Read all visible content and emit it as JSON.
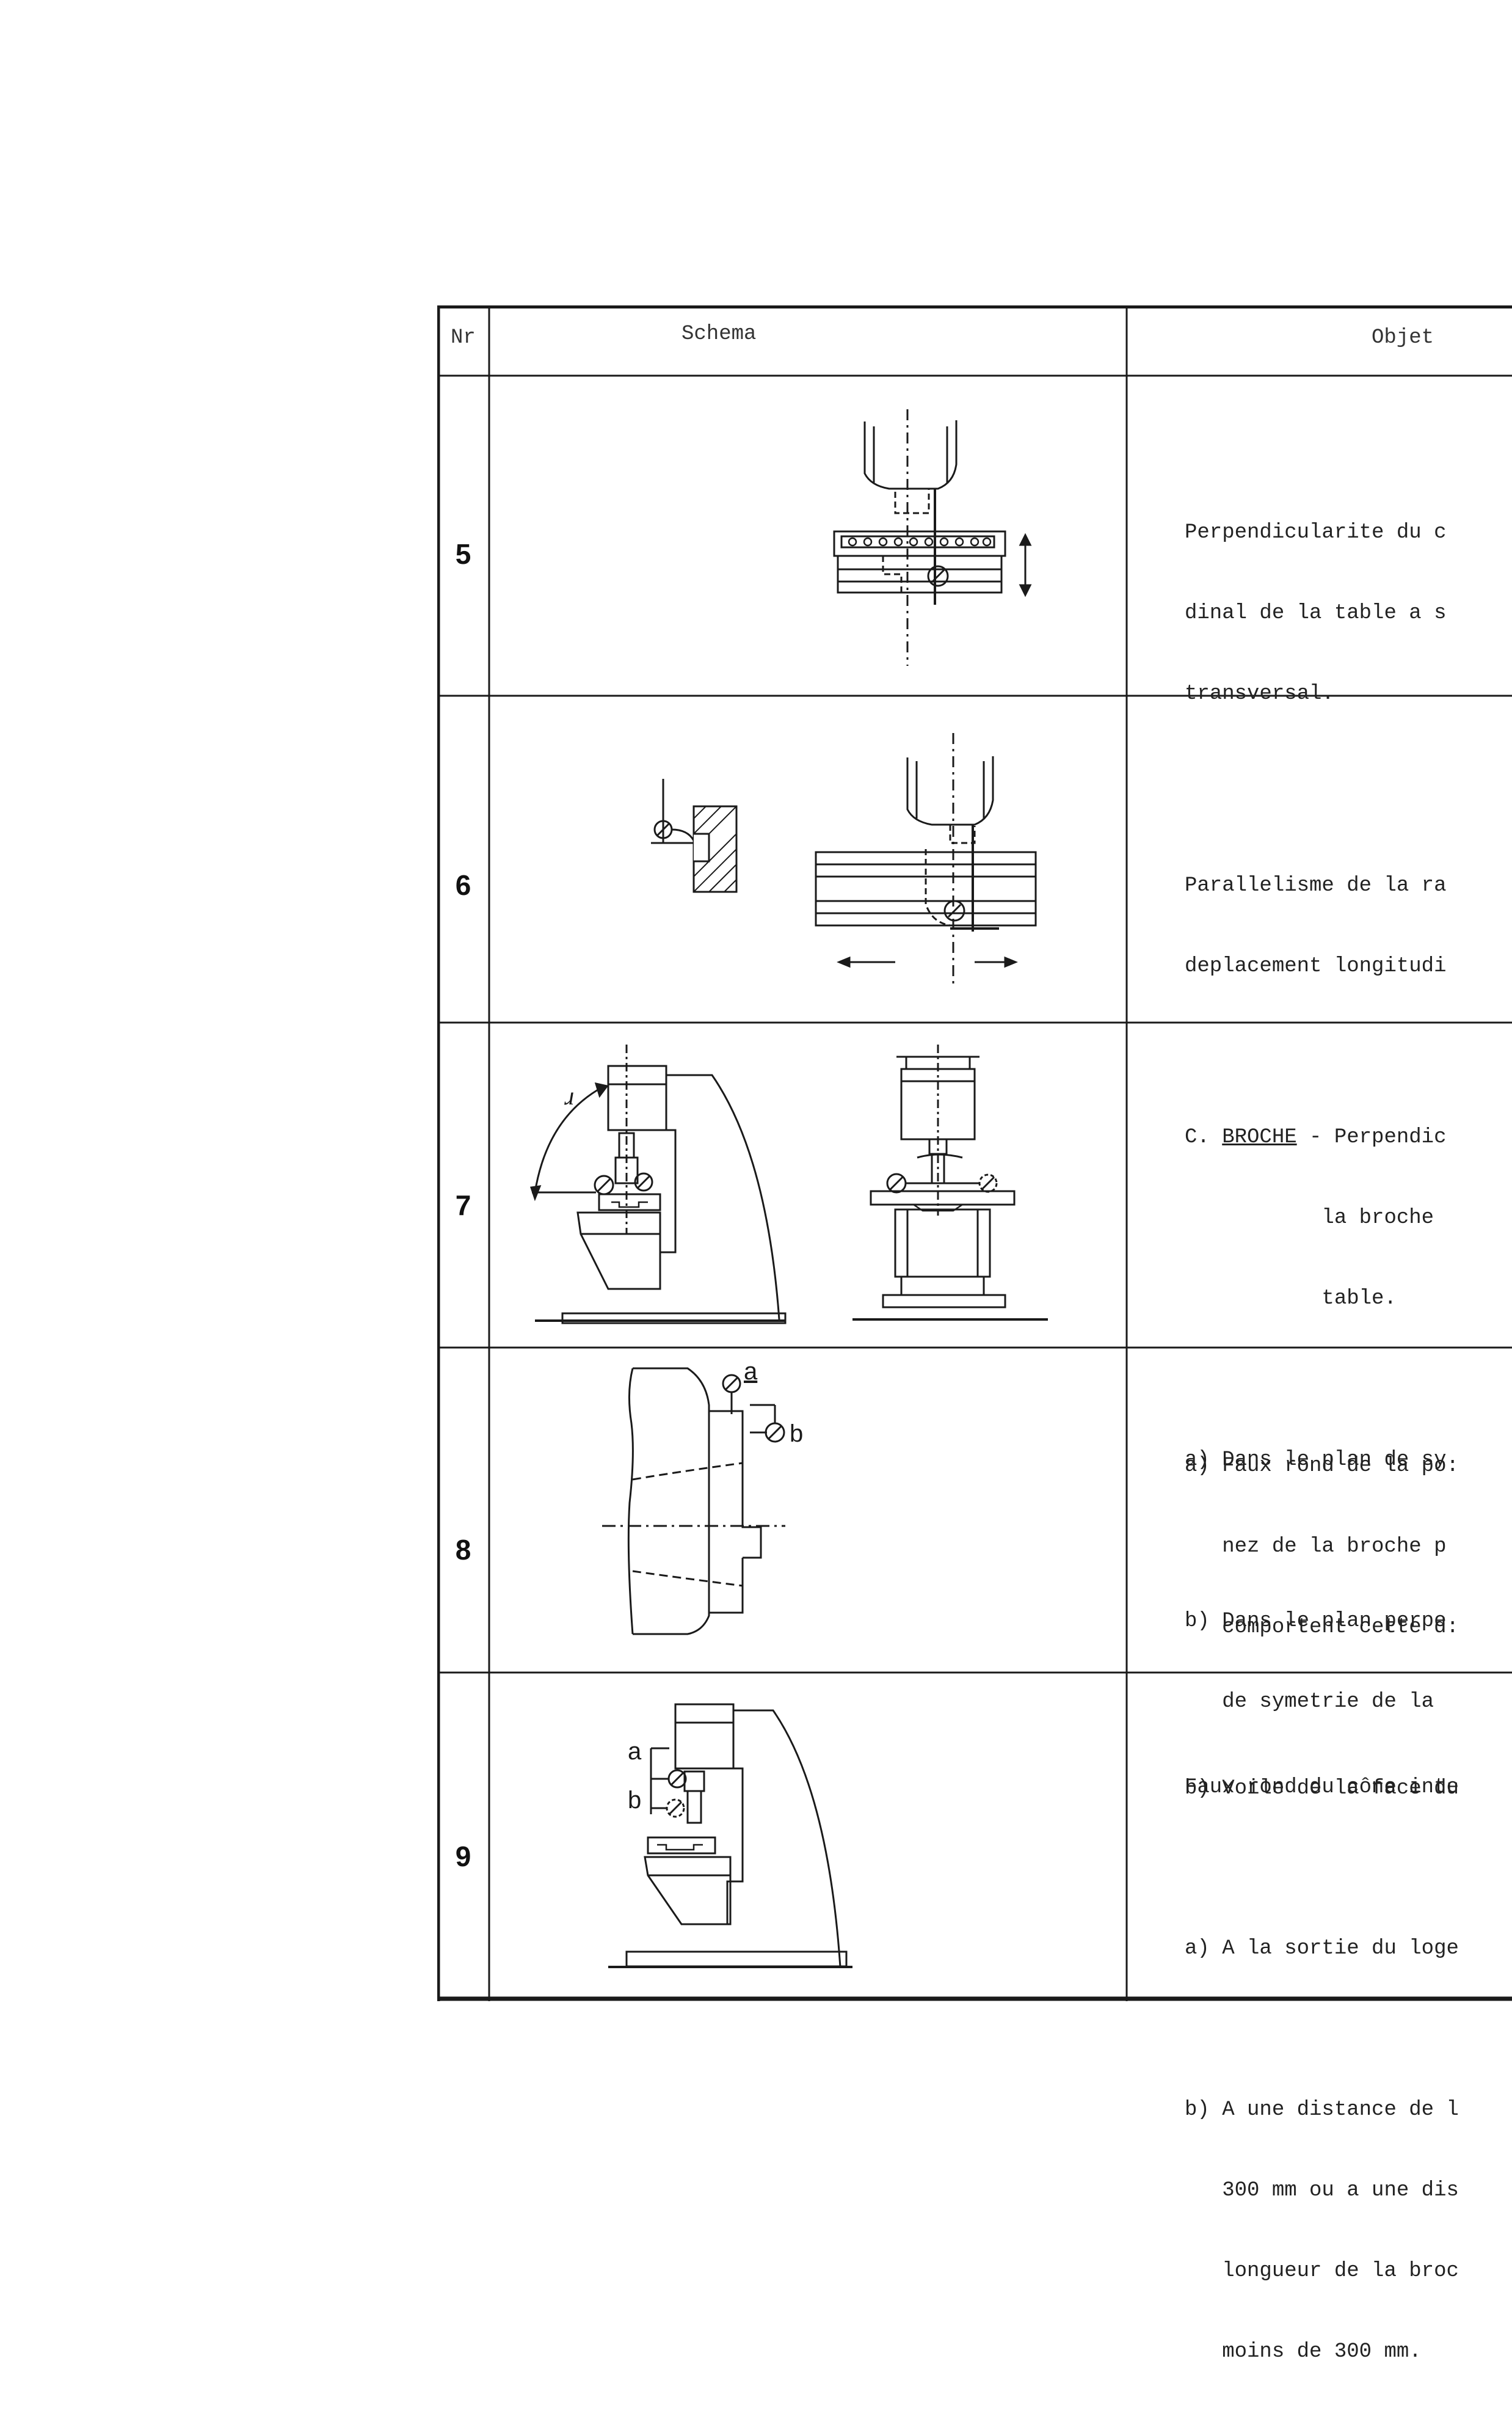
{
  "header": {
    "nr": "Nr",
    "schema": "Schema",
    "objet": "Objet"
  },
  "rows": [
    {
      "nr": "5",
      "objet": [
        "Perpendicularite du c",
        "dinal de la table a s",
        "transversal."
      ]
    },
    {
      "nr": "6",
      "objet": [
        "Parallelisme de la ra",
        "deplacement longitudi"
      ]
    },
    {
      "nr": "7",
      "objet_head": "C. ",
      "objet_head_u": "BROCHE",
      "objet_head_rest": " - Perpendic",
      "objet": [
        "           la broche",
        "           table.",
        "",
        "a) Dans le plan de sy",
        "",
        "b) Dans le plan perpe",
        "   de symetrie de la"
      ]
    },
    {
      "nr": "8",
      "objet": [
        "a) Faux rond de la po:",
        "   nez de la broche p",
        "   comportent cette d:",
        "",
        "b) Voile de la face du"
      ]
    },
    {
      "nr": "9",
      "objet": [
        "Faux rond du cône inte",
        "",
        "a) A la sortie du loge",
        "",
        "b) A une distance de l",
        "   300 mm ou a une dis",
        "   longueur de la broc",
        "   moins de 300 mm."
      ]
    }
  ],
  "figures": {
    "fig6_angle_label": "",
    "fig7_angle_label": "ɹ",
    "fig8_label_a": "a",
    "fig8_label_b": "b",
    "fig9_label_a": "a",
    "fig9_label_b": "b"
  }
}
